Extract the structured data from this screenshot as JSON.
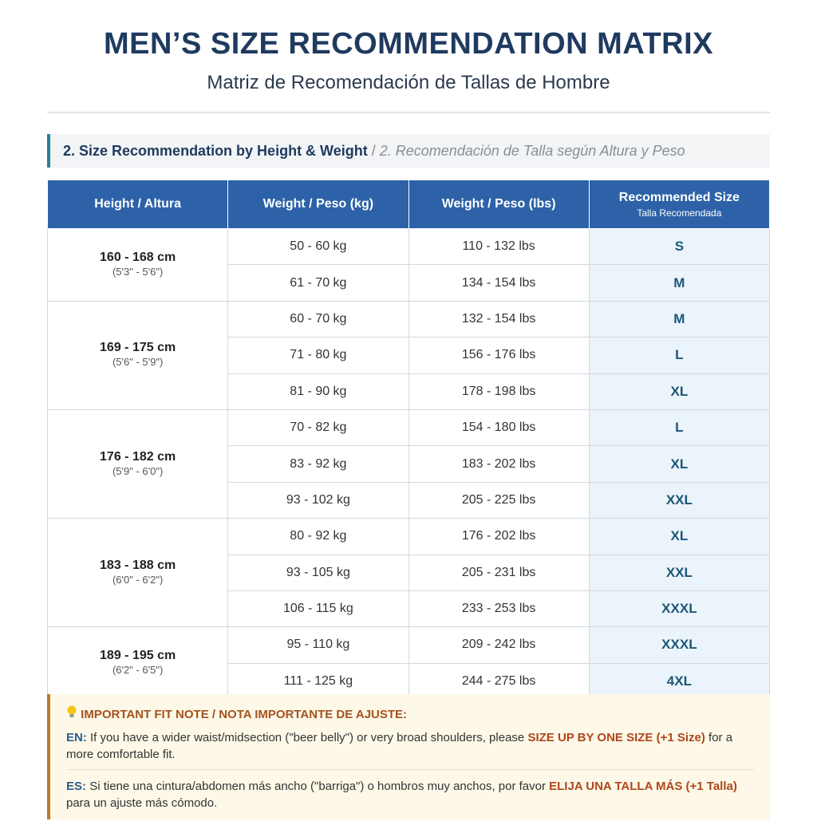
{
  "header": {
    "title": "MEN’S SIZE RECOMMENDATION MATRIX",
    "subtitle": "Matriz de Recomendación de Tallas de Hombre"
  },
  "section": {
    "title": "2. Size Recommendation by Height & Weight",
    "divider": "/",
    "title_es": "2. Recomendación de Talla según Altura y Peso"
  },
  "table": {
    "headers": [
      {
        "label": "Height / Altura"
      },
      {
        "label": "Weight / Peso (kg)"
      },
      {
        "label": "Weight / Peso (lbs)"
      },
      {
        "label": "Recommended Size",
        "sublabel": "Talla Recomendada"
      }
    ],
    "groups": [
      {
        "height": "160 - 168 cm",
        "imperial": "(5'3\" - 5'6\")",
        "rows": [
          [
            "50 - 60 kg",
            "110 - 132 lbs",
            "S"
          ],
          [
            "61 - 70 kg",
            "134 - 154 lbs",
            "M"
          ]
        ]
      },
      {
        "height": "169 - 175 cm",
        "imperial": "(5'6\" - 5'9\")",
        "rows": [
          [
            "60 - 70 kg",
            "132 - 154 lbs",
            "M"
          ],
          [
            "71 - 80 kg",
            "156 - 176 lbs",
            "L"
          ],
          [
            "81 - 90 kg",
            "178 - 198 lbs",
            "XL"
          ]
        ]
      },
      {
        "height": "176 - 182 cm",
        "imperial": "(5'9\" - 6'0\")",
        "rows": [
          [
            "70 - 82 kg",
            "154 - 180 lbs",
            "L"
          ],
          [
            "83 - 92 kg",
            "183 - 202 lbs",
            "XL"
          ],
          [
            "93 - 102 kg",
            "205 - 225 lbs",
            "XXL"
          ]
        ]
      },
      {
        "height": "183 - 188 cm",
        "imperial": "(6'0\" - 6'2\")",
        "rows": [
          [
            "80 - 92 kg",
            "176 - 202 lbs",
            "XL"
          ],
          [
            "93 - 105 kg",
            "205 - 231 lbs",
            "XXL"
          ],
          [
            "106 - 115 kg",
            "233 - 253 lbs",
            "XXXL"
          ]
        ]
      },
      {
        "height": "189 - 195 cm",
        "imperial": "(6'2\" - 6'5\")",
        "rows": [
          [
            "95 - 110 kg",
            "209 - 242 lbs",
            "XXXL"
          ],
          [
            "111 - 125 kg",
            "244 - 275 lbs",
            "4XL"
          ]
        ]
      }
    ]
  },
  "note": {
    "title": "IMPORTANT FIT NOTE / NOTA IMPORTANTE DE AJUSTE:",
    "en": {
      "label": "EN:",
      "text": "If you have a wider waist/midsection (\"beer belly\") or very broad shoulders, please",
      "emphasis": "SIZE UP BY ONE SIZE (+1 Size)",
      "tail": "for a more comfortable fit."
    },
    "es": {
      "label": "ES:",
      "text": "Si tiene una cintura/abdomen más ancho (\"barriga\") o hombros muy anchos, por favor",
      "emphasis": "ELIJA UNA TALLA MÁS (+1 Talla)",
      "tail": "para un ajuste más cómodo."
    }
  }
}
